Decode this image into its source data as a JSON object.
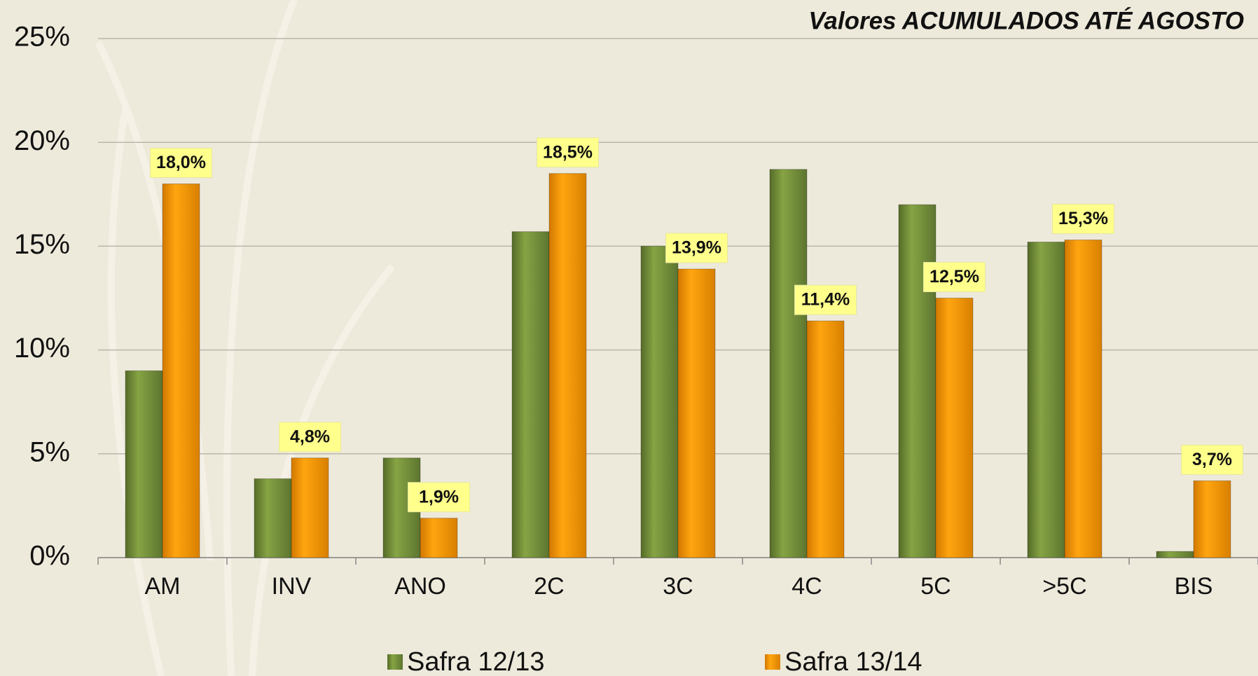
{
  "chart_data": {
    "type": "bar",
    "title": "Valores ACUMULADOS ATÉ AGOSTO",
    "categories": [
      "AM",
      "INV",
      "ANO",
      "2C",
      "3C",
      "4C",
      "5C",
      ">5C",
      "BIS"
    ],
    "series": [
      {
        "name": "Safra 12/13",
        "color": "#77933c",
        "values": [
          9.0,
          3.8,
          4.8,
          15.7,
          15.0,
          18.7,
          17.0,
          15.2,
          0.3
        ]
      },
      {
        "name": "Safra 13/14",
        "color": "#f59a00",
        "values": [
          18.0,
          4.8,
          1.9,
          18.5,
          13.9,
          11.4,
          12.5,
          15.3,
          3.7
        ],
        "value_labels": [
          "18,0%",
          "4,8%",
          "1,9%",
          "18,5%",
          "13,9%",
          "11,4%",
          "12,5%",
          "15,3%",
          "3,7%"
        ]
      }
    ],
    "ylim": [
      0,
      25
    ],
    "yticks": [
      {
        "value": 0,
        "label": "0%"
      },
      {
        "value": 5,
        "label": "5%"
      },
      {
        "value": 10,
        "label": "10%"
      },
      {
        "value": 15,
        "label": "15%"
      },
      {
        "value": 20,
        "label": "20%"
      },
      {
        "value": 25,
        "label": "25%"
      }
    ],
    "grid": true,
    "legend": "bottom"
  }
}
